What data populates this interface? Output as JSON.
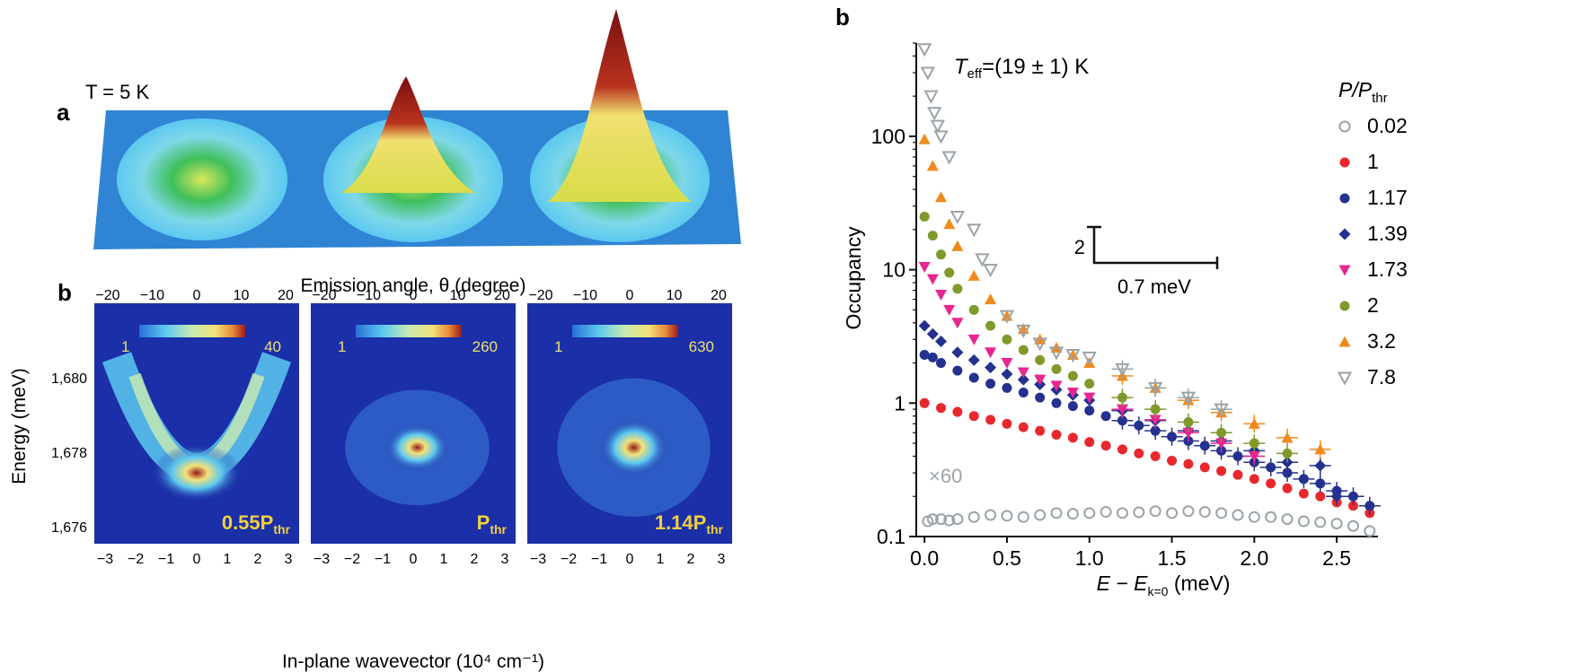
{
  "left_figure": {
    "panel_a": {
      "label": "a",
      "temperature": "T = 5 K"
    },
    "panel_b": {
      "label": "b",
      "top_axis_label": "Emission angle, θ (degree)",
      "top_ticks": [
        "−20",
        "−10",
        "0",
        "10",
        "20"
      ],
      "bottom_ticks": [
        "−3",
        "−2",
        "−1",
        "0",
        "1",
        "2",
        "3"
      ],
      "xlabel": "In-plane wavevector (10⁴ cm⁻¹)",
      "ylabel": "Energy (meV)",
      "y_ticks": [
        "1,680",
        "1,678",
        "1,676"
      ],
      "maps": [
        {
          "colorbar_min": "1",
          "colorbar_max": "40",
          "power_label": "0.55P",
          "power_sub": "thr"
        },
        {
          "colorbar_min": "1",
          "colorbar_max": "260",
          "power_label": "P",
          "power_sub": "thr"
        },
        {
          "colorbar_min": "1",
          "colorbar_max": "630",
          "power_label": "1.14P",
          "power_sub": "thr"
        }
      ]
    }
  },
  "chart_data": {
    "type": "scatter",
    "panel_label": "b",
    "annotation": "T_eff=(19 ± 1) K",
    "annotation_main": "T",
    "annotation_sub": "eff",
    "annotation_rest": "=(19 ± 1) K",
    "scale_bar_y": "2",
    "scale_bar_x": "0.7 meV",
    "multiplier_label": "×60",
    "xlabel": "E − E",
    "xlabel_sub": "k=0",
    "xlabel_unit": " (meV)",
    "ylabel": "Occupancy",
    "xlim": [
      -0.05,
      2.75
    ],
    "ylim": [
      0.1,
      500
    ],
    "yscale": "log",
    "x_ticks": [
      "0.0",
      "0.5",
      "1.0",
      "1.5",
      "2.0",
      "2.5"
    ],
    "y_ticks": [
      "0.1",
      "1",
      "10",
      "100"
    ],
    "legend_title": "P/P",
    "legend_title_sub": "thr",
    "legend_position": "right",
    "series": [
      {
        "name": "0.02",
        "color": "#9aa3a8",
        "marker": "circle-open",
        "x": [
          0.02,
          0.05,
          0.1,
          0.15,
          0.2,
          0.3,
          0.4,
          0.5,
          0.6,
          0.7,
          0.8,
          0.9,
          1.0,
          1.1,
          1.2,
          1.3,
          1.4,
          1.5,
          1.6,
          1.7,
          1.8,
          1.9,
          2.0,
          2.1,
          2.2,
          2.3,
          2.4,
          2.5,
          2.6,
          2.7
        ],
        "y": [
          0.13,
          0.135,
          0.135,
          0.132,
          0.135,
          0.14,
          0.145,
          0.143,
          0.14,
          0.145,
          0.15,
          0.148,
          0.15,
          0.153,
          0.15,
          0.152,
          0.155,
          0.15,
          0.155,
          0.153,
          0.15,
          0.145,
          0.14,
          0.14,
          0.135,
          0.13,
          0.128,
          0.125,
          0.12,
          0.11
        ]
      },
      {
        "name": "1",
        "color": "#e8282f",
        "marker": "circle",
        "x": [
          0.0,
          0.1,
          0.2,
          0.3,
          0.4,
          0.5,
          0.6,
          0.7,
          0.8,
          0.9,
          1.0,
          1.1,
          1.2,
          1.3,
          1.4,
          1.5,
          1.6,
          1.7,
          1.8,
          1.9,
          2.0,
          2.1,
          2.2,
          2.3,
          2.4,
          2.5,
          2.6,
          2.7
        ],
        "y": [
          1.0,
          0.92,
          0.86,
          0.8,
          0.75,
          0.7,
          0.66,
          0.62,
          0.58,
          0.55,
          0.51,
          0.48,
          0.45,
          0.42,
          0.4,
          0.37,
          0.35,
          0.33,
          0.31,
          0.29,
          0.27,
          0.25,
          0.23,
          0.21,
          0.2,
          0.18,
          0.17,
          0.15
        ]
      },
      {
        "name": "1.17",
        "color": "#25318f",
        "marker": "circle",
        "x": [
          0.0,
          0.05,
          0.1,
          0.2,
          0.3,
          0.4,
          0.5,
          0.6,
          0.7,
          0.8,
          0.9,
          1.0,
          1.1,
          1.2,
          1.3,
          1.4,
          1.5,
          1.6,
          1.7,
          1.8,
          1.9,
          2.0,
          2.1,
          2.2,
          2.3,
          2.4,
          2.5,
          2.6,
          2.7
        ],
        "y": [
          2.3,
          2.2,
          2.0,
          1.75,
          1.55,
          1.4,
          1.3,
          1.2,
          1.1,
          1.0,
          0.95,
          0.88,
          0.8,
          0.74,
          0.68,
          0.62,
          0.56,
          0.52,
          0.48,
          0.44,
          0.4,
          0.36,
          0.33,
          0.3,
          0.27,
          0.25,
          0.22,
          0.2,
          0.17
        ]
      },
      {
        "name": "1.39",
        "color": "#25318f",
        "marker": "diamond",
        "x": [
          0.0,
          0.05,
          0.1,
          0.2,
          0.3,
          0.4,
          0.5,
          0.6,
          0.7,
          0.8,
          0.9,
          1.0,
          1.2,
          1.4,
          1.6,
          1.8,
          2.0,
          2.2,
          2.4,
          2.5
        ],
        "y": [
          3.8,
          3.3,
          2.9,
          2.4,
          2.1,
          1.85,
          1.65,
          1.5,
          1.38,
          1.26,
          1.15,
          1.05,
          0.88,
          0.74,
          0.62,
          0.52,
          0.44,
          0.36,
          0.34,
          0.2
        ]
      },
      {
        "name": "1.73",
        "color": "#e8268f",
        "marker": "triangle-down",
        "x": [
          0.0,
          0.05,
          0.1,
          0.15,
          0.2,
          0.3,
          0.4,
          0.5,
          0.6,
          0.7,
          0.8,
          0.9,
          1.0,
          1.2,
          1.4,
          1.6,
          1.8,
          2.0
        ],
        "y": [
          10.5,
          8.5,
          6.5,
          5.0,
          4.0,
          3.0,
          2.4,
          2.0,
          1.7,
          1.5,
          1.35,
          1.2,
          1.1,
          0.9,
          0.75,
          0.6,
          0.5,
          0.4
        ]
      },
      {
        "name": "2",
        "color": "#7f9a2b",
        "marker": "circle",
        "x": [
          0.0,
          0.05,
          0.1,
          0.15,
          0.2,
          0.3,
          0.4,
          0.5,
          0.6,
          0.7,
          0.8,
          0.9,
          1.0,
          1.2,
          1.4,
          1.6,
          1.8,
          2.0,
          2.2
        ],
        "y": [
          25,
          18,
          13,
          9.5,
          7.2,
          5.0,
          3.8,
          3.0,
          2.5,
          2.1,
          1.8,
          1.6,
          1.4,
          1.1,
          0.9,
          0.72,
          0.6,
          0.5,
          0.42
        ]
      },
      {
        "name": "3.2",
        "color": "#f08a1c",
        "marker": "triangle-up",
        "x": [
          0.0,
          0.05,
          0.1,
          0.15,
          0.2,
          0.3,
          0.4,
          0.5,
          0.6,
          0.7,
          0.8,
          0.9,
          1.0,
          1.2,
          1.4,
          1.6,
          1.8,
          2.0,
          2.2,
          2.4
        ],
        "y": [
          95,
          60,
          35,
          22,
          15,
          9,
          6,
          4.5,
          3.6,
          3.0,
          2.6,
          2.3,
          2.0,
          1.6,
          1.3,
          1.05,
          0.85,
          0.7,
          0.55,
          0.45
        ]
      },
      {
        "name": "7.8",
        "color": "#9aa3a8",
        "marker": "triangle-down-open",
        "x": [
          0.0,
          0.02,
          0.04,
          0.06,
          0.08,
          0.1,
          0.15,
          0.2,
          0.3,
          0.35,
          0.4,
          0.5,
          0.6,
          0.7,
          0.8,
          0.9,
          1.0,
          1.2,
          1.4,
          1.6,
          1.8
        ],
        "y": [
          450,
          300,
          200,
          150,
          120,
          100,
          70,
          25,
          20,
          12,
          10,
          4.5,
          3.5,
          2.8,
          2.4,
          2.3,
          2.2,
          1.8,
          1.3,
          1.1,
          0.9
        ]
      }
    ]
  }
}
